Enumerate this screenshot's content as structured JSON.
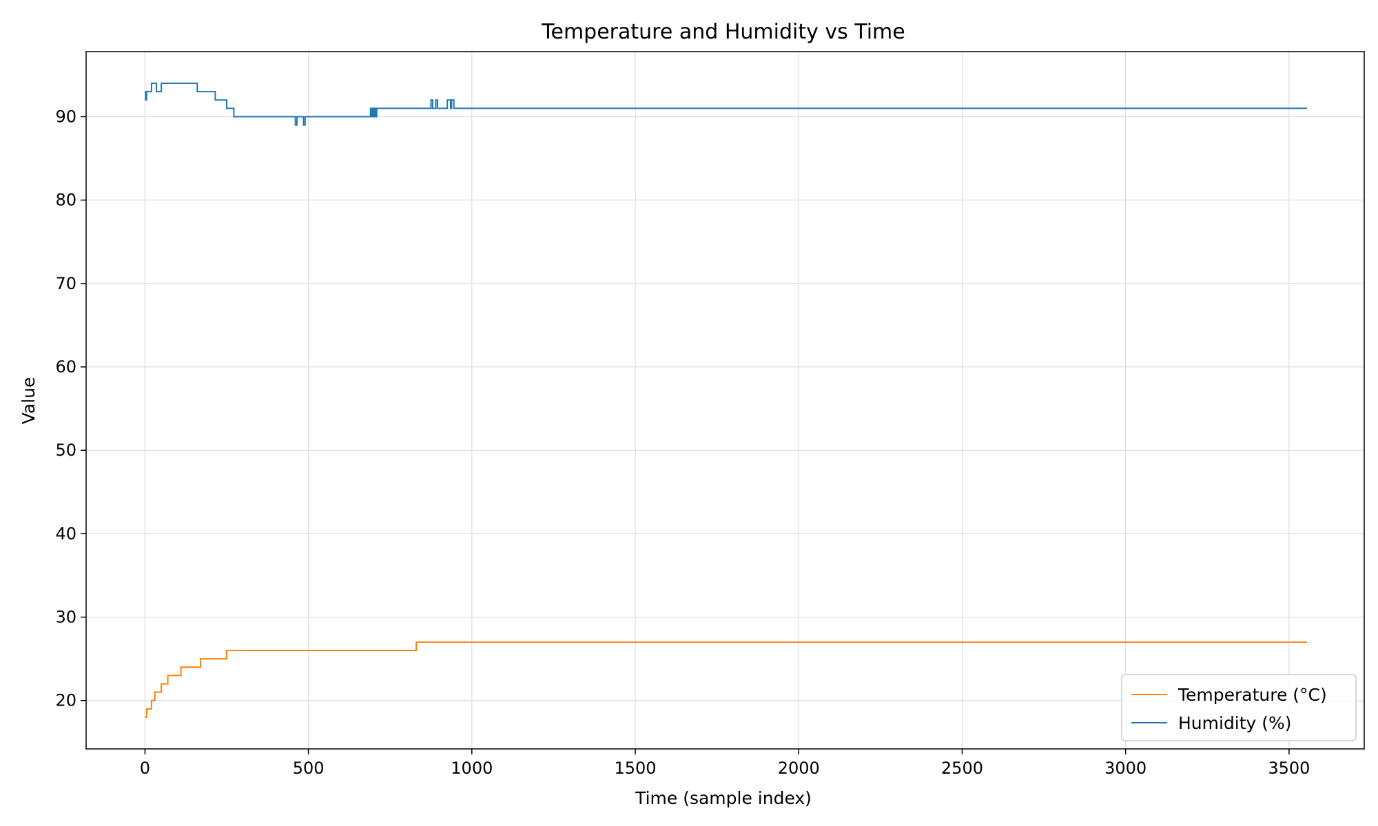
{
  "chart_data": {
    "type": "line",
    "title": "Temperature and Humidity vs Time",
    "xlabel": "Time (sample index)",
    "ylabel": "Value",
    "xlim": [
      -180,
      3730
    ],
    "ylim": [
      14.2,
      97.8
    ],
    "xticks": [
      0,
      500,
      1000,
      1500,
      2000,
      2500,
      3000,
      3500
    ],
    "yticks": [
      20,
      30,
      40,
      50,
      60,
      70,
      80,
      90
    ],
    "grid": true,
    "legend_position": "lower-right",
    "series": [
      {
        "name": "Temperature (°C)",
        "color": "#ff7f0e",
        "step": true,
        "points": [
          [
            0,
            18
          ],
          [
            5,
            19
          ],
          [
            20,
            20
          ],
          [
            30,
            21
          ],
          [
            50,
            22
          ],
          [
            70,
            23
          ],
          [
            110,
            24
          ],
          [
            170,
            25
          ],
          [
            250,
            26
          ],
          [
            830,
            27
          ],
          [
            3555,
            27
          ]
        ]
      },
      {
        "name": "Humidity (%)",
        "color": "#1f77b4",
        "step": true,
        "points": [
          [
            0,
            93
          ],
          [
            2,
            92
          ],
          [
            5,
            93
          ],
          [
            20,
            94
          ],
          [
            35,
            93
          ],
          [
            50,
            94
          ],
          [
            160,
            93
          ],
          [
            215,
            92
          ],
          [
            250,
            91
          ],
          [
            272,
            90
          ],
          [
            460,
            89
          ],
          [
            465,
            90
          ],
          [
            485,
            89
          ],
          [
            490,
            90
          ],
          [
            690,
            91
          ],
          [
            693,
            90
          ],
          [
            697,
            91
          ],
          [
            700,
            90
          ],
          [
            703,
            91
          ],
          [
            706,
            90
          ],
          [
            709,
            91
          ],
          [
            875,
            92
          ],
          [
            880,
            91
          ],
          [
            890,
            92
          ],
          [
            895,
            91
          ],
          [
            925,
            92
          ],
          [
            935,
            91
          ],
          [
            938,
            92
          ],
          [
            945,
            91
          ],
          [
            3555,
            91
          ]
        ]
      }
    ]
  }
}
